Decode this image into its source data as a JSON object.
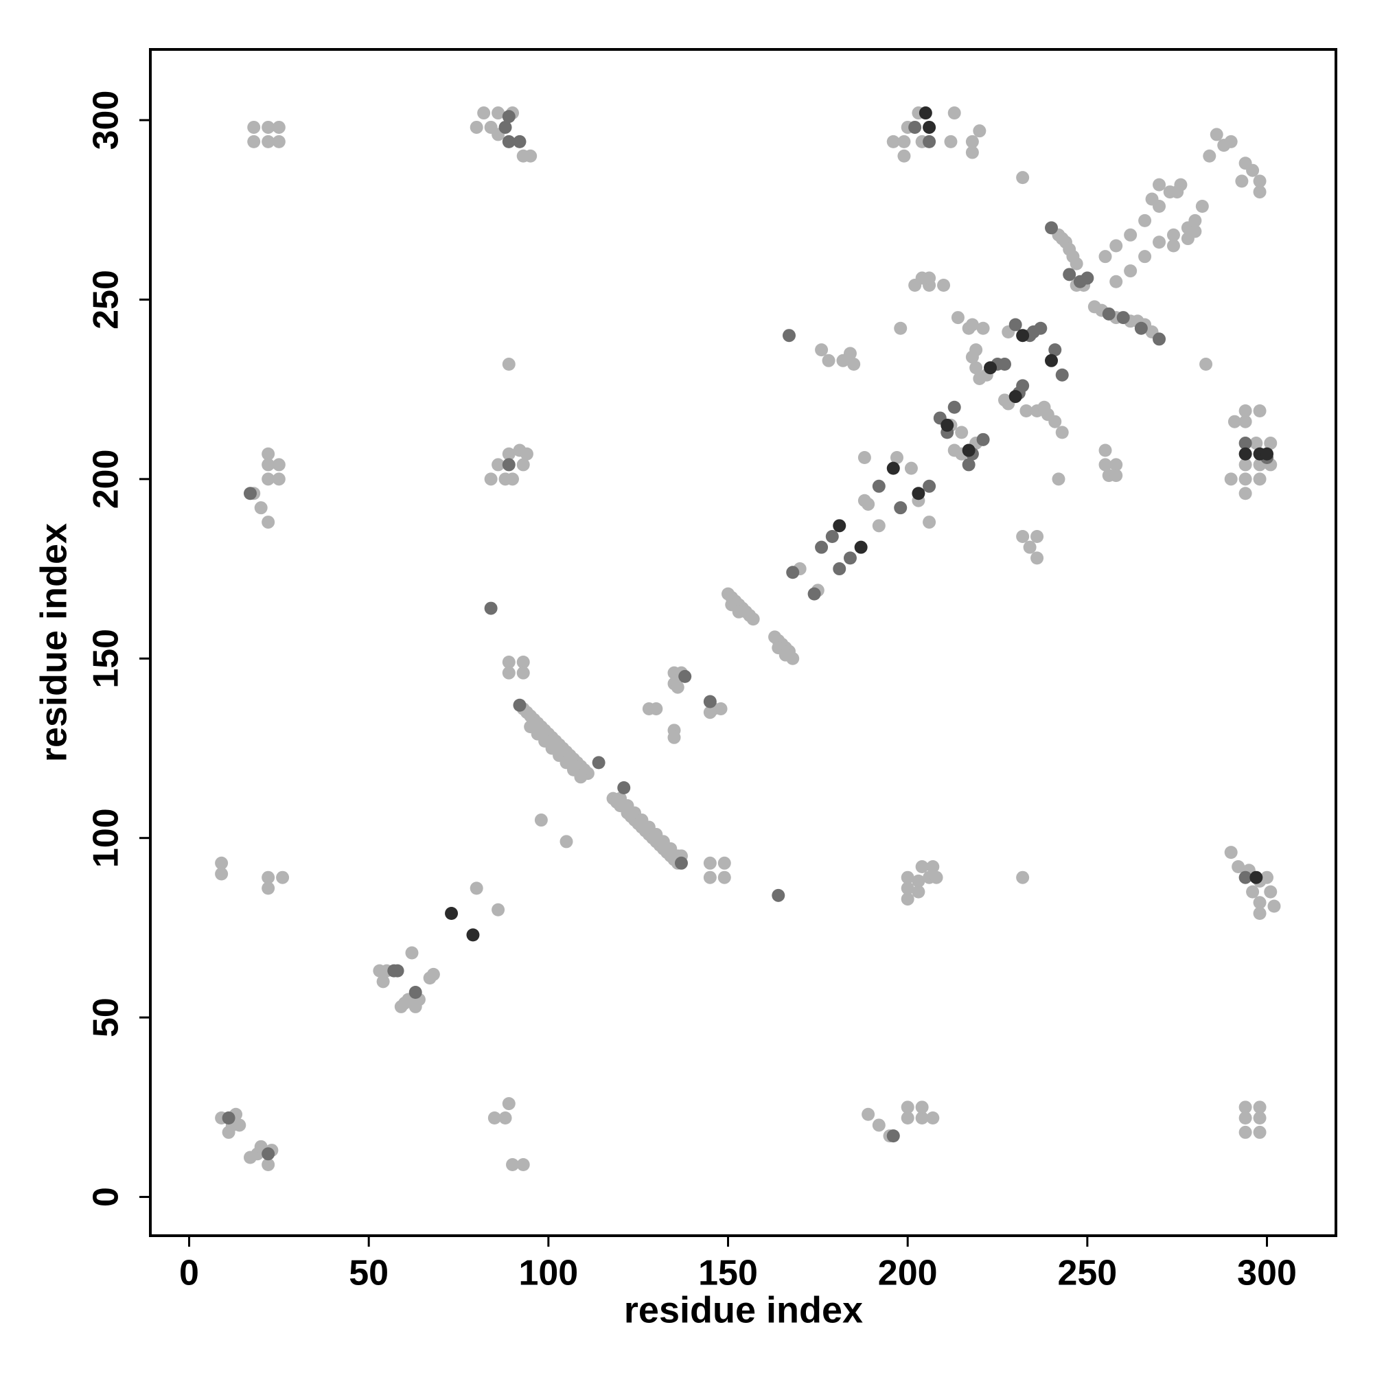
{
  "chart_data": {
    "type": "scatter",
    "xlabel": "residue index",
    "ylabel": "residue index",
    "xlim": [
      -10.8,
      319.2
    ],
    "ylim": [
      -10.8,
      319.7
    ],
    "xticks": [
      0,
      50,
      100,
      150,
      200,
      250,
      300
    ],
    "yticks": [
      0,
      50,
      100,
      150,
      200,
      250,
      300
    ],
    "series": [
      {
        "color": "#b3b3b3",
        "x": [
          9,
          11,
          12,
          13,
          14,
          17,
          19,
          20,
          22,
          23,
          85,
          88,
          89,
          90,
          93,
          189,
          192,
          195,
          200,
          200,
          204,
          204,
          207,
          294,
          294,
          294,
          298,
          298,
          298,
          53,
          54,
          55,
          59,
          60,
          61,
          62,
          63,
          64,
          67,
          68,
          80,
          86,
          9,
          9,
          22,
          22,
          26,
          98,
          105,
          145,
          145,
          149,
          149,
          200,
          200,
          200,
          203,
          203,
          204,
          206,
          207,
          208,
          232,
          290,
          292,
          296,
          298,
          298,
          298,
          300,
          301,
          302,
          295,
          93,
          94,
          95,
          96,
          97,
          98,
          99,
          100,
          101,
          102,
          103,
          104,
          105,
          106,
          107,
          108,
          109,
          110,
          111,
          95,
          97,
          99,
          101,
          103,
          105,
          107,
          109,
          118,
          119,
          120,
          122,
          123,
          124,
          125,
          126,
          127,
          128,
          129,
          130,
          131,
          132,
          133,
          134,
          135,
          136,
          137,
          120,
          122,
          124,
          126,
          128,
          130,
          132,
          134,
          136,
          89,
          89,
          93,
          93,
          89,
          135,
          137,
          135,
          136,
          135,
          135,
          128,
          130,
          146,
          148,
          145,
          150,
          151,
          152,
          153,
          154,
          155,
          156,
          157,
          151,
          153,
          163,
          164,
          165,
          166,
          167,
          168,
          164,
          166,
          170,
          175,
          189,
          188,
          201,
          203,
          188,
          197,
          206,
          192,
          176,
          178,
          182,
          184,
          185,
          18,
          20,
          22,
          22,
          22,
          22,
          25,
          25,
          84,
          86,
          88,
          90,
          89,
          92,
          93,
          94,
          212,
          215,
          219,
          215,
          213,
          222,
          219,
          219,
          218,
          220,
          221,
          217,
          214,
          218,
          227,
          228,
          233,
          236,
          228,
          239,
          241,
          243,
          238,
          242,
          232,
          236,
          234,
          236,
          232,
          198,
          206,
          202,
          204,
          206,
          210,
          242,
          243,
          244,
          245,
          246,
          247,
          249,
          247,
          254,
          258,
          262,
          264,
          266,
          268,
          252,
          255,
          258,
          262,
          266,
          270,
          273,
          276,
          258,
          262,
          266,
          270,
          274,
          278,
          280,
          282,
          268,
          270,
          275,
          274,
          278,
          280,
          283,
          286,
          288,
          284,
          290,
          293,
          294,
          296,
          298,
          298,
          255,
          255,
          258,
          256,
          258,
          290,
          291,
          294,
          294,
          298,
          294,
          294,
          294,
          297,
          298,
          298,
          301,
          301,
          18,
          18,
          22,
          22,
          25,
          25,
          80,
          82,
          84,
          86,
          93,
          95,
          86,
          90,
          196,
          199,
          199,
          200,
          203,
          204,
          213,
          212,
          218,
          218,
          220
        ],
        "values": [
          22,
          18,
          20,
          23,
          20,
          11,
          12,
          14,
          9,
          13,
          22,
          22,
          26,
          9,
          9,
          23,
          20,
          17,
          22,
          25,
          22,
          25,
          22,
          25,
          22,
          18,
          25,
          22,
          18,
          63,
          60,
          63,
          53,
          54,
          55,
          68,
          53,
          55,
          61,
          62,
          86,
          80,
          93,
          90,
          89,
          86,
          89,
          105,
          99,
          89,
          93,
          89,
          93,
          83,
          86,
          89,
          85,
          88,
          92,
          89,
          92,
          89,
          89,
          96,
          92,
          85,
          88,
          82,
          79,
          89,
          85,
          81,
          91,
          136,
          135,
          134,
          133,
          132,
          131,
          130,
          129,
          128,
          127,
          126,
          125,
          124,
          123,
          122,
          121,
          120,
          119,
          118,
          131,
          129,
          127,
          125,
          123,
          121,
          119,
          117,
          111,
          110,
          109,
          107,
          106,
          105,
          104,
          103,
          102,
          101,
          100,
          99,
          98,
          97,
          96,
          95,
          94,
          93,
          95,
          111,
          109,
          107,
          105,
          103,
          101,
          99,
          97,
          95,
          149,
          146,
          149,
          146,
          232,
          146,
          146,
          143,
          142,
          130,
          128,
          136,
          136,
          136,
          136,
          135,
          168,
          167,
          166,
          165,
          164,
          163,
          162,
          161,
          165,
          163,
          156,
          155,
          154,
          153,
          152,
          150,
          153,
          151,
          175,
          169,
          193,
          194,
          203,
          194,
          206,
          206,
          188,
          187,
          236,
          233,
          233,
          235,
          232,
          196,
          192,
          188,
          207,
          204,
          200,
          204,
          200,
          200,
          204,
          200,
          200,
          207,
          208,
          204,
          207,
          215,
          213,
          210,
          207,
          208,
          229,
          236,
          231,
          234,
          228,
          242,
          242,
          245,
          243,
          222,
          221,
          219,
          219,
          241,
          218,
          216,
          213,
          220,
          200,
          284,
          178,
          181,
          184,
          184,
          242,
          254,
          254,
          256,
          256,
          254,
          268,
          267,
          266,
          264,
          262,
          260,
          254,
          254,
          247,
          245,
          244,
          244,
          243,
          241,
          248,
          262,
          265,
          268,
          272,
          276,
          280,
          282,
          255,
          258,
          262,
          266,
          268,
          270,
          272,
          276,
          278,
          282,
          280,
          265,
          267,
          269,
          232,
          296,
          293,
          290,
          294,
          283,
          288,
          286,
          280,
          283,
          204,
          208,
          204,
          201,
          201,
          200,
          216,
          219,
          216,
          219,
          204,
          200,
          196,
          210,
          204,
          200,
          204,
          210,
          298,
          294,
          298,
          294,
          298,
          294,
          298,
          302,
          298,
          302,
          290,
          290,
          296,
          302,
          294,
          290,
          294,
          298,
          302,
          294,
          302,
          294,
          291,
          294,
          297
        ]
      },
      {
        "color": "#6e6e6e",
        "x": [
          11,
          22,
          196,
          57,
          58,
          63,
          164,
          294,
          114,
          121,
          84,
          138,
          145,
          168,
          174,
          176,
          179,
          184,
          181,
          192,
          198,
          206,
          167,
          17,
          89,
          209,
          213,
          211,
          217,
          218,
          221,
          225,
          227,
          231,
          232,
          230,
          234,
          235,
          237,
          241,
          243,
          240,
          245,
          248,
          250,
          256,
          260,
          270,
          265,
          294,
          300,
          88,
          89,
          89,
          92,
          202,
          206,
          92,
          137
        ],
        "values": [
          22,
          12,
          17,
          63,
          63,
          57,
          84,
          89,
          121,
          114,
          164,
          145,
          138,
          174,
          168,
          181,
          184,
          178,
          175,
          198,
          192,
          198,
          240,
          196,
          204,
          217,
          220,
          213,
          204,
          207,
          211,
          232,
          232,
          224,
          226,
          243,
          240,
          241,
          242,
          236,
          229,
          270,
          257,
          255,
          256,
          246,
          245,
          239,
          242,
          210,
          206,
          298,
          294,
          301,
          294,
          298,
          294,
          137,
          93
        ]
      },
      {
        "color": "#2b2b2b",
        "x": [
          73,
          79,
          297,
          181,
          187,
          196,
          203,
          211,
          217,
          223,
          230,
          232,
          240,
          294,
          298,
          300,
          205,
          206
        ],
        "values": [
          79,
          73,
          89,
          187,
          181,
          203,
          196,
          215,
          208,
          231,
          223,
          240,
          233,
          207,
          207,
          207,
          302,
          298
        ]
      }
    ]
  }
}
